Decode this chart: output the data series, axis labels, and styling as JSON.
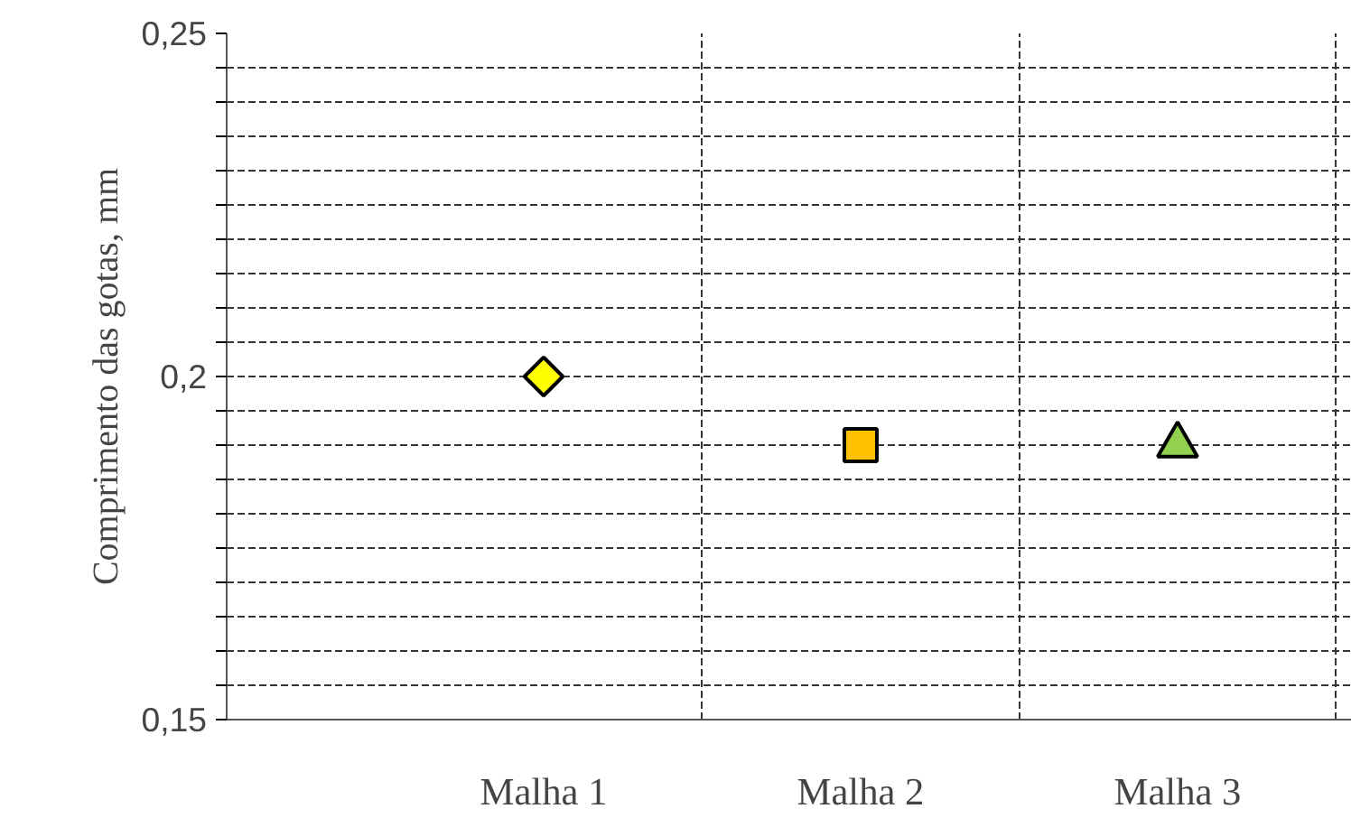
{
  "chart_data": {
    "type": "scatter",
    "ylabel": "Comprimento das gotas, mm",
    "categories": [
      "Malha 1",
      "Malha 2",
      "Malha 3"
    ],
    "series": [
      {
        "color": "#ffff00",
        "marker": "diamond",
        "values": [
          0.2,
          null,
          null
        ]
      },
      {
        "color": "#ffc000",
        "marker": "square",
        "values": [
          null,
          0.19,
          null
        ]
      },
      {
        "color": "#92d050",
        "marker": "triangle",
        "values": [
          null,
          null,
          0.19
        ]
      }
    ],
    "ylim": [
      0.15,
      0.25
    ],
    "yticks": [
      {
        "value": 0.15,
        "label": "0,15"
      },
      {
        "value": 0.155,
        "label": null
      },
      {
        "value": 0.16,
        "label": null
      },
      {
        "value": 0.165,
        "label": null
      },
      {
        "value": 0.17,
        "label": null
      },
      {
        "value": 0.175,
        "label": null
      },
      {
        "value": 0.18,
        "label": null
      },
      {
        "value": 0.185,
        "label": null
      },
      {
        "value": 0.19,
        "label": null
      },
      {
        "value": 0.195,
        "label": null
      },
      {
        "value": 0.2,
        "label": "0,2"
      },
      {
        "value": 0.205,
        "label": null
      },
      {
        "value": 0.21,
        "label": null
      },
      {
        "value": 0.215,
        "label": null
      },
      {
        "value": 0.22,
        "label": null
      },
      {
        "value": 0.225,
        "label": null
      },
      {
        "value": 0.23,
        "label": null
      },
      {
        "value": 0.235,
        "label": null
      },
      {
        "value": 0.24,
        "label": null
      },
      {
        "value": 0.245,
        "label": null
      },
      {
        "value": 0.25,
        "label": "0,25"
      }
    ],
    "grid": true
  }
}
